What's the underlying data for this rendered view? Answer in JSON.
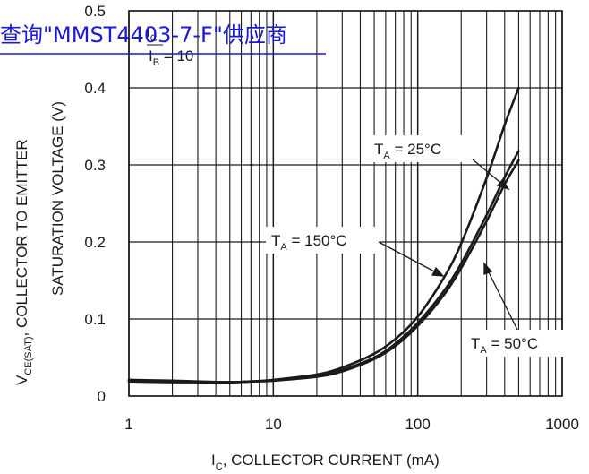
{
  "watermark": {
    "text": "查询\"MMST4403-7-F\"供应商",
    "color": "#1a1ad6"
  },
  "colors": {
    "curve": "#1a1a1a",
    "grid": "#1a1a1a",
    "background": "#ffffff"
  },
  "chart_data": {
    "type": "line",
    "x_scale": "log",
    "xlim": [
      1,
      1000
    ],
    "ylim": [
      0,
      0.5
    ],
    "x_ticks": [
      1,
      10,
      100,
      1000
    ],
    "x_tick_labels": [
      "1",
      "10",
      "100",
      "1000"
    ],
    "y_ticks": [
      0,
      0.1,
      0.2,
      0.3,
      0.4,
      0.5
    ],
    "y_tick_labels": [
      "0",
      "0.1",
      "0.2",
      "0.3",
      "0.4",
      "0.5"
    ],
    "grid": true,
    "xlabel": {
      "main": "I",
      "sub": "C",
      "rest": ", COLLECTOR CURRENT (mA)"
    },
    "ylabel": {
      "line1": {
        "main": "V",
        "sub": "CE(SAT)",
        "rest": ",  COLLECTOR TO EMITTER"
      },
      "line2": "SATURATION VOLTAGE (V)"
    },
    "condition": {
      "numerator": {
        "main": "I",
        "sub": "C"
      },
      "denominator": {
        "main": "I",
        "sub": "B"
      },
      "rest": " = 10"
    },
    "series": [
      {
        "name": "T_A = 25°C",
        "label": {
          "main": "T",
          "sub": "A",
          "rest": " = 25°C"
        },
        "x": [
          1,
          2,
          3,
          5,
          7,
          10,
          20,
          30,
          50,
          70,
          100,
          150,
          200,
          300,
          400,
          500
        ],
        "y": [
          0.02,
          0.019,
          0.018,
          0.018,
          0.019,
          0.02,
          0.026,
          0.034,
          0.05,
          0.068,
          0.095,
          0.135,
          0.172,
          0.235,
          0.284,
          0.318
        ]
      },
      {
        "name": "T_A = 150°C",
        "label": {
          "main": "T",
          "sub": "A",
          "rest": " = 150°C"
        },
        "x": [
          1,
          2,
          3,
          5,
          7,
          10,
          20,
          30,
          50,
          70,
          100,
          150,
          200,
          300,
          400,
          500
        ],
        "y": [
          0.019,
          0.018,
          0.018,
          0.018,
          0.019,
          0.021,
          0.028,
          0.037,
          0.055,
          0.074,
          0.103,
          0.152,
          0.198,
          0.283,
          0.352,
          0.4
        ]
      },
      {
        "name": "T_A = 50°C",
        "label": {
          "main": "T",
          "sub": "A",
          "rest": " = 50°C"
        },
        "x": [
          1,
          2,
          3,
          5,
          7,
          10,
          20,
          30,
          50,
          70,
          100,
          150,
          200,
          300,
          400,
          500
        ],
        "y": [
          0.021,
          0.02,
          0.019,
          0.018,
          0.019,
          0.02,
          0.025,
          0.032,
          0.048,
          0.065,
          0.091,
          0.13,
          0.166,
          0.227,
          0.275,
          0.306
        ]
      }
    ]
  }
}
